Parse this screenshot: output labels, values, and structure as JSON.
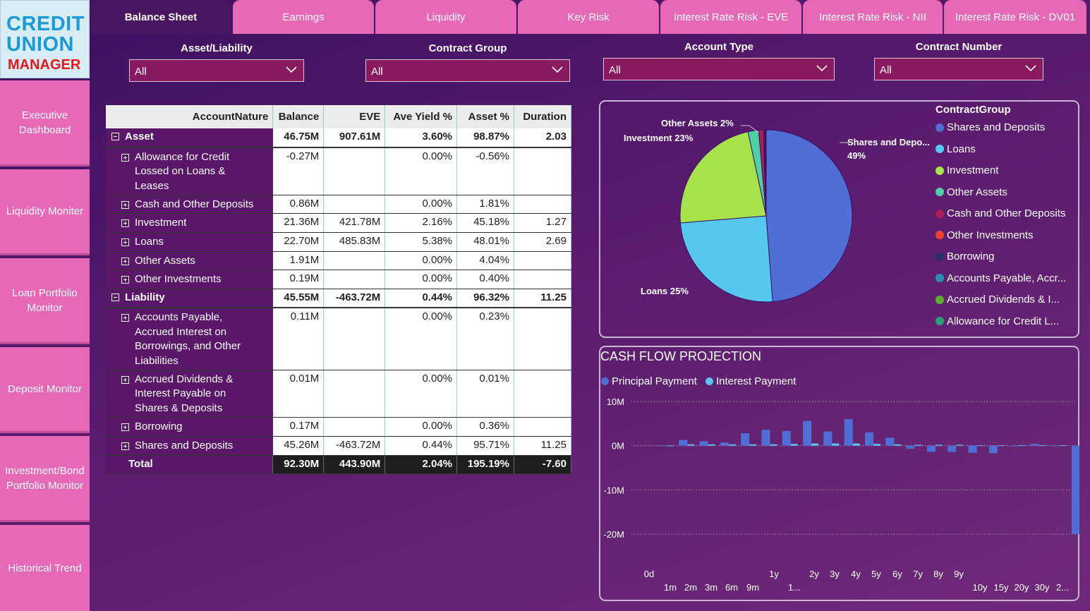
{
  "logo": {
    "line1": "CREDIT",
    "line2": "UNION",
    "line3": "MANAGER"
  },
  "sidebar": {
    "items": [
      {
        "label": "Executive Dashboard"
      },
      {
        "label": "Liquidity Moniter"
      },
      {
        "label": "Loan Portfolio Monitor"
      },
      {
        "label": "Deposit Monitor"
      },
      {
        "label": "Investment/Bond Portfolio Monitor"
      },
      {
        "label": "Historical Trend"
      }
    ]
  },
  "tabs": [
    {
      "label": "Balance Sheet",
      "active": true
    },
    {
      "label": "Earnings"
    },
    {
      "label": "Liquidity"
    },
    {
      "label": "Key Risk"
    },
    {
      "label": "Interest Rate Risk - EVE"
    },
    {
      "label": "Interest Rate Risk - NII"
    },
    {
      "label": "Interest Rate Risk - DV01"
    }
  ],
  "filters": [
    {
      "label": "Asset/Liability",
      "value": "All"
    },
    {
      "label": "Contract Group",
      "value": "All"
    },
    {
      "label": "Account Type",
      "value": "All"
    },
    {
      "label": "Contract Number",
      "value": "All"
    }
  ],
  "table": {
    "headers": [
      "AccountNature",
      "Balance",
      "EVE",
      "Ave Yield %",
      "Asset %",
      "Duration"
    ],
    "rows": [
      {
        "type": "group",
        "name": "Asset",
        "values": [
          "46.75M",
          "907.61M",
          "3.60%",
          "98.87%",
          "2.03"
        ]
      },
      {
        "type": "child",
        "name": "Allowance for Credit Lossed on Loans & Leases",
        "values": [
          "-0.27M",
          "",
          "0.00%",
          "-0.56%",
          ""
        ],
        "h": 3
      },
      {
        "type": "child",
        "name": "Cash and Other Deposits",
        "values": [
          "0.86M",
          "",
          "0.00%",
          "1.81%",
          ""
        ]
      },
      {
        "type": "child",
        "name": "Investment",
        "values": [
          "21.36M",
          "421.78M",
          "2.16%",
          "45.18%",
          "1.27"
        ]
      },
      {
        "type": "child",
        "name": "Loans",
        "values": [
          "22.70M",
          "485.83M",
          "5.38%",
          "48.01%",
          "2.69"
        ]
      },
      {
        "type": "child",
        "name": "Other Assets",
        "values": [
          "1.91M",
          "",
          "0.00%",
          "4.04%",
          ""
        ]
      },
      {
        "type": "child",
        "name": "Other Investments",
        "values": [
          "0.19M",
          "",
          "0.00%",
          "0.40%",
          ""
        ]
      },
      {
        "type": "group",
        "name": "Liability",
        "values": [
          "45.55M",
          "-463.72M",
          "0.44%",
          "96.32%",
          "11.25"
        ]
      },
      {
        "type": "child",
        "name": "Accounts Payable, Accrued Interest on Borrowings, and Other Liabilities",
        "values": [
          "0.11M",
          "",
          "0.00%",
          "0.23%",
          ""
        ],
        "h": 4
      },
      {
        "type": "child",
        "name": "Accrued Dividends & Interest Payable on Shares & Deposits",
        "values": [
          "0.01M",
          "",
          "0.00%",
          "0.01%",
          ""
        ],
        "h": 3
      },
      {
        "type": "child",
        "name": "Borrowing",
        "values": [
          "0.17M",
          "",
          "0.00%",
          "0.36%",
          ""
        ]
      },
      {
        "type": "child",
        "name": "Shares and Deposits",
        "values": [
          "45.26M",
          "-463.72M",
          "0.44%",
          "95.71%",
          "11.25"
        ]
      },
      {
        "type": "total",
        "name": "Total",
        "values": [
          "92.30M",
          "443.90M",
          "2.04%",
          "195.19%",
          "-7.60"
        ]
      }
    ]
  },
  "pie": {
    "legend_title": "ContractGroup",
    "legend": [
      {
        "name": "Shares and Deposits",
        "color": "#4f6fd6"
      },
      {
        "name": "Loans",
        "color": "#56c8f0"
      },
      {
        "name": "Investment",
        "color": "#a6e24a"
      },
      {
        "name": "Other Assets",
        "color": "#4fcfa8"
      },
      {
        "name": "Cash and Other Deposits",
        "color": "#a8205a"
      },
      {
        "name": "Other Investments",
        "color": "#f0442a"
      },
      {
        "name": "Borrowing",
        "color": "#24306a"
      },
      {
        "name": "Accounts Payable, Accr...",
        "color": "#2a8fb8"
      },
      {
        "name": "Accrued Dividends & I...",
        "color": "#5ab02a"
      },
      {
        "name": "Allowance for Credit L...",
        "color": "#2aa07a"
      }
    ],
    "labels": {
      "shares": "Shares and Depo...",
      "shares_pct": "49%",
      "loans": "Loans 25%",
      "investment": "Investment 23%",
      "other_assets": "Other Assets 2%"
    }
  },
  "chart_data": {
    "type": "pie",
    "categories": [
      "Shares and Deposits",
      "Loans",
      "Investment",
      "Other Assets",
      "Cash and Other Deposits",
      "Other Investments",
      "Borrowing",
      "Accounts Payable, Accr...",
      "Accrued Dividends & I...",
      "Allowance for Credit L..."
    ],
    "values": [
      49,
      25,
      23,
      2,
      0.9,
      0.2,
      0.2,
      0.1,
      0.01,
      0
    ],
    "title": "",
    "legend_title": "ContractGroup",
    "legend": "right"
  },
  "cashflow": {
    "title": "CASH FLOW PROJECTION",
    "legend": [
      {
        "name": "Principal Payment",
        "color": "#4f6fd6"
      },
      {
        "name": "Interest Payment",
        "color": "#56c8f0"
      }
    ],
    "y_ticks": [
      "10M",
      "0M",
      "-10M",
      "-20M"
    ],
    "ylim": [
      -20,
      10
    ],
    "x_top": [
      "0d",
      "1y",
      "2y",
      "3y",
      "4y",
      "5y",
      "6y",
      "7y",
      "8y",
      "9y"
    ],
    "x_bottom": [
      "1m",
      "2m",
      "3m",
      "6m",
      "9m",
      "1...",
      "10y",
      "15y",
      "20y",
      "30y",
      "2..."
    ],
    "principal": [
      0,
      1.3,
      1.0,
      0.7,
      2.8,
      3.6,
      3.3,
      5.6,
      3.2,
      6.0,
      3.0,
      1.8,
      -0.7,
      -1.4,
      -1.4,
      -1.6,
      -1.7,
      0,
      0.4,
      0,
      -20,
      0
    ],
    "interest": [
      0,
      0.3,
      0.3,
      0.3,
      0.3,
      0.3,
      0.4,
      0.5,
      0.5,
      0.5,
      0.4,
      0.3,
      0.2,
      0.2,
      0.2,
      0.1,
      0.1,
      0.1,
      0.1,
      0.1,
      0.1,
      0
    ]
  }
}
